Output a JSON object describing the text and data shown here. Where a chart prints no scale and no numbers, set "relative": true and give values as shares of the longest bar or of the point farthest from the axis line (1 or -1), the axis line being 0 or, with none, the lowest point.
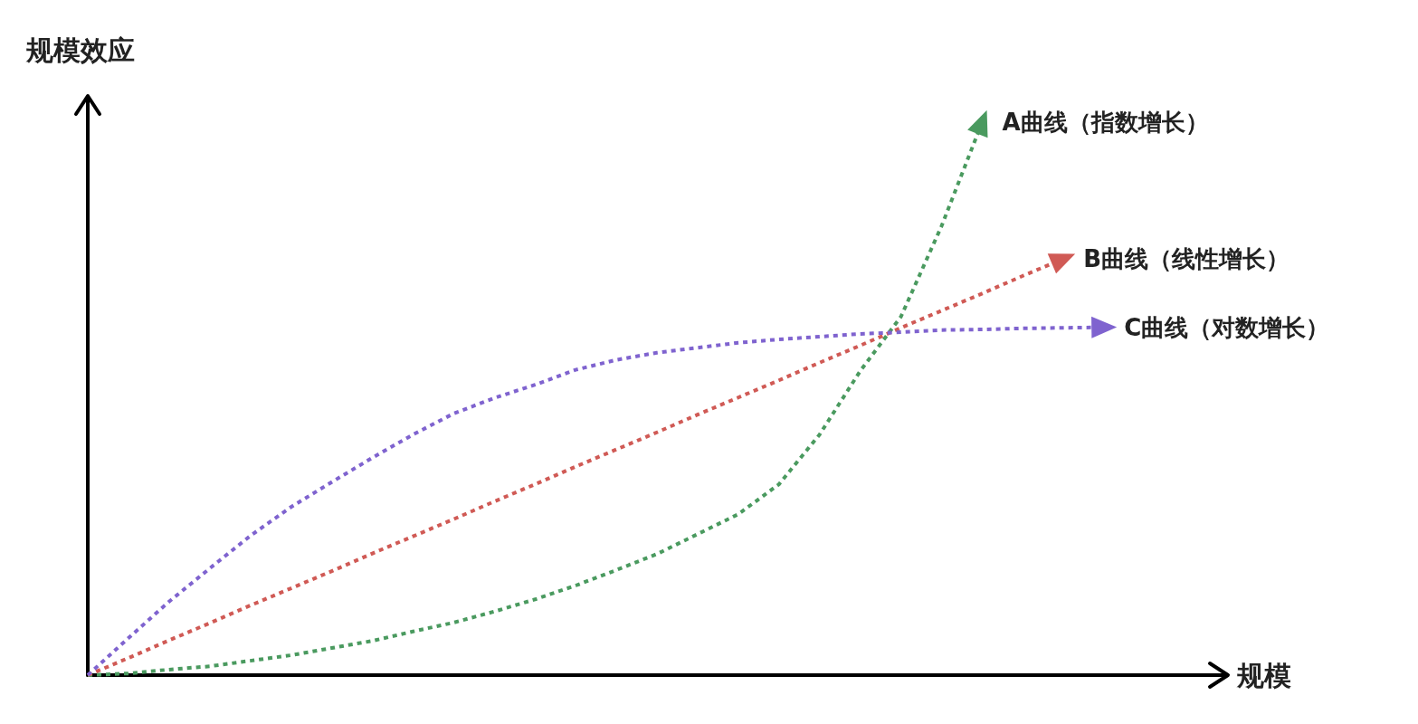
{
  "chart_data": {
    "type": "line",
    "relative": true,
    "xlabel": "规模",
    "ylabel": "规模效应",
    "categories": [
      null,
      null,
      null,
      null,
      null,
      null,
      null,
      null,
      null,
      null,
      null,
      null,
      null,
      null,
      null,
      null,
      null,
      null,
      null,
      null,
      null,
      null,
      null,
      null,
      null,
      null,
      null,
      null,
      null
    ],
    "series": [
      {
        "name": "A曲线（指数增长）",
        "color": "#4a9a5f",
        "values": [
          0,
          0.003,
          0.01,
          0.016,
          0.026,
          0.036,
          0.049,
          0.062,
          0.079,
          0.095,
          0.115,
          0.137,
          0.162,
          0.19,
          0.219,
          0.255,
          0.291,
          0.345,
          0.435,
          0.55,
          0.648,
          0.812,
          1.0,
          null,
          null,
          null,
          null,
          null,
          null
        ]
      },
      {
        "name": "B曲线（线性增长）",
        "color": "#d05a55",
        "values": [
          0,
          0.031,
          0.063,
          0.094,
          0.126,
          0.157,
          0.188,
          0.22,
          0.251,
          0.282,
          0.314,
          0.345,
          0.377,
          0.408,
          0.439,
          0.471,
          0.502,
          0.533,
          0.565,
          0.596,
          0.628,
          0.659,
          0.69,
          0.722,
          0.753,
          null,
          null,
          null,
          null
        ]
      },
      {
        "name": "C曲线（对数增长）",
        "color": "#7f63cf",
        "values": [
          0,
          0.067,
          0.133,
          0.193,
          0.252,
          0.304,
          0.349,
          0.393,
          0.435,
          0.473,
          0.501,
          0.525,
          0.552,
          0.57,
          0.583,
          0.592,
          0.601,
          0.607,
          0.612,
          0.617,
          0.62,
          0.624,
          0.625,
          0.627,
          0.628,
          0.629,
          null,
          null,
          null
        ]
      }
    ],
    "line_style": "dotted",
    "marker": "none",
    "grid": false,
    "legend": false
  }
}
